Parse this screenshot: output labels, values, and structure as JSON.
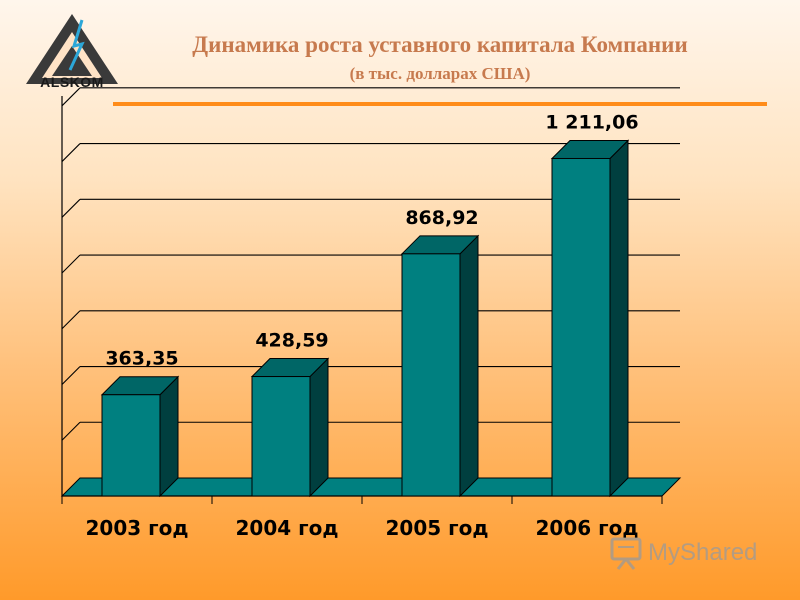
{
  "header": {
    "logo_text": "ALSKOM",
    "title": "Динамика роста уставного капитала Компании",
    "subtitle": "(в тыс. долларах США)"
  },
  "colors": {
    "bar_front": "#008080",
    "bar_side": "#003f3f",
    "bar_top": "#006666",
    "accent_rule": "#ff8c1a",
    "title_color": "#c77a4e"
  },
  "chart_data": {
    "type": "bar",
    "categories": [
      "2003 год",
      "2004 год",
      "2005 год",
      "2006 год"
    ],
    "values": [
      363.35,
      428.59,
      868.92,
      1211.06
    ],
    "value_labels": [
      "363,35",
      "428,59",
      "868,92",
      "1 211,06"
    ],
    "title": "Динамика роста уставного капитала Компании",
    "subtitle": "(в тыс. долларах США)",
    "xlabel": "",
    "ylabel": "",
    "ylim": [
      0,
      1500
    ],
    "grid": true,
    "style": "3d-column"
  },
  "watermark": {
    "text": "MyShared",
    "icon": "presentation-board-icon"
  }
}
